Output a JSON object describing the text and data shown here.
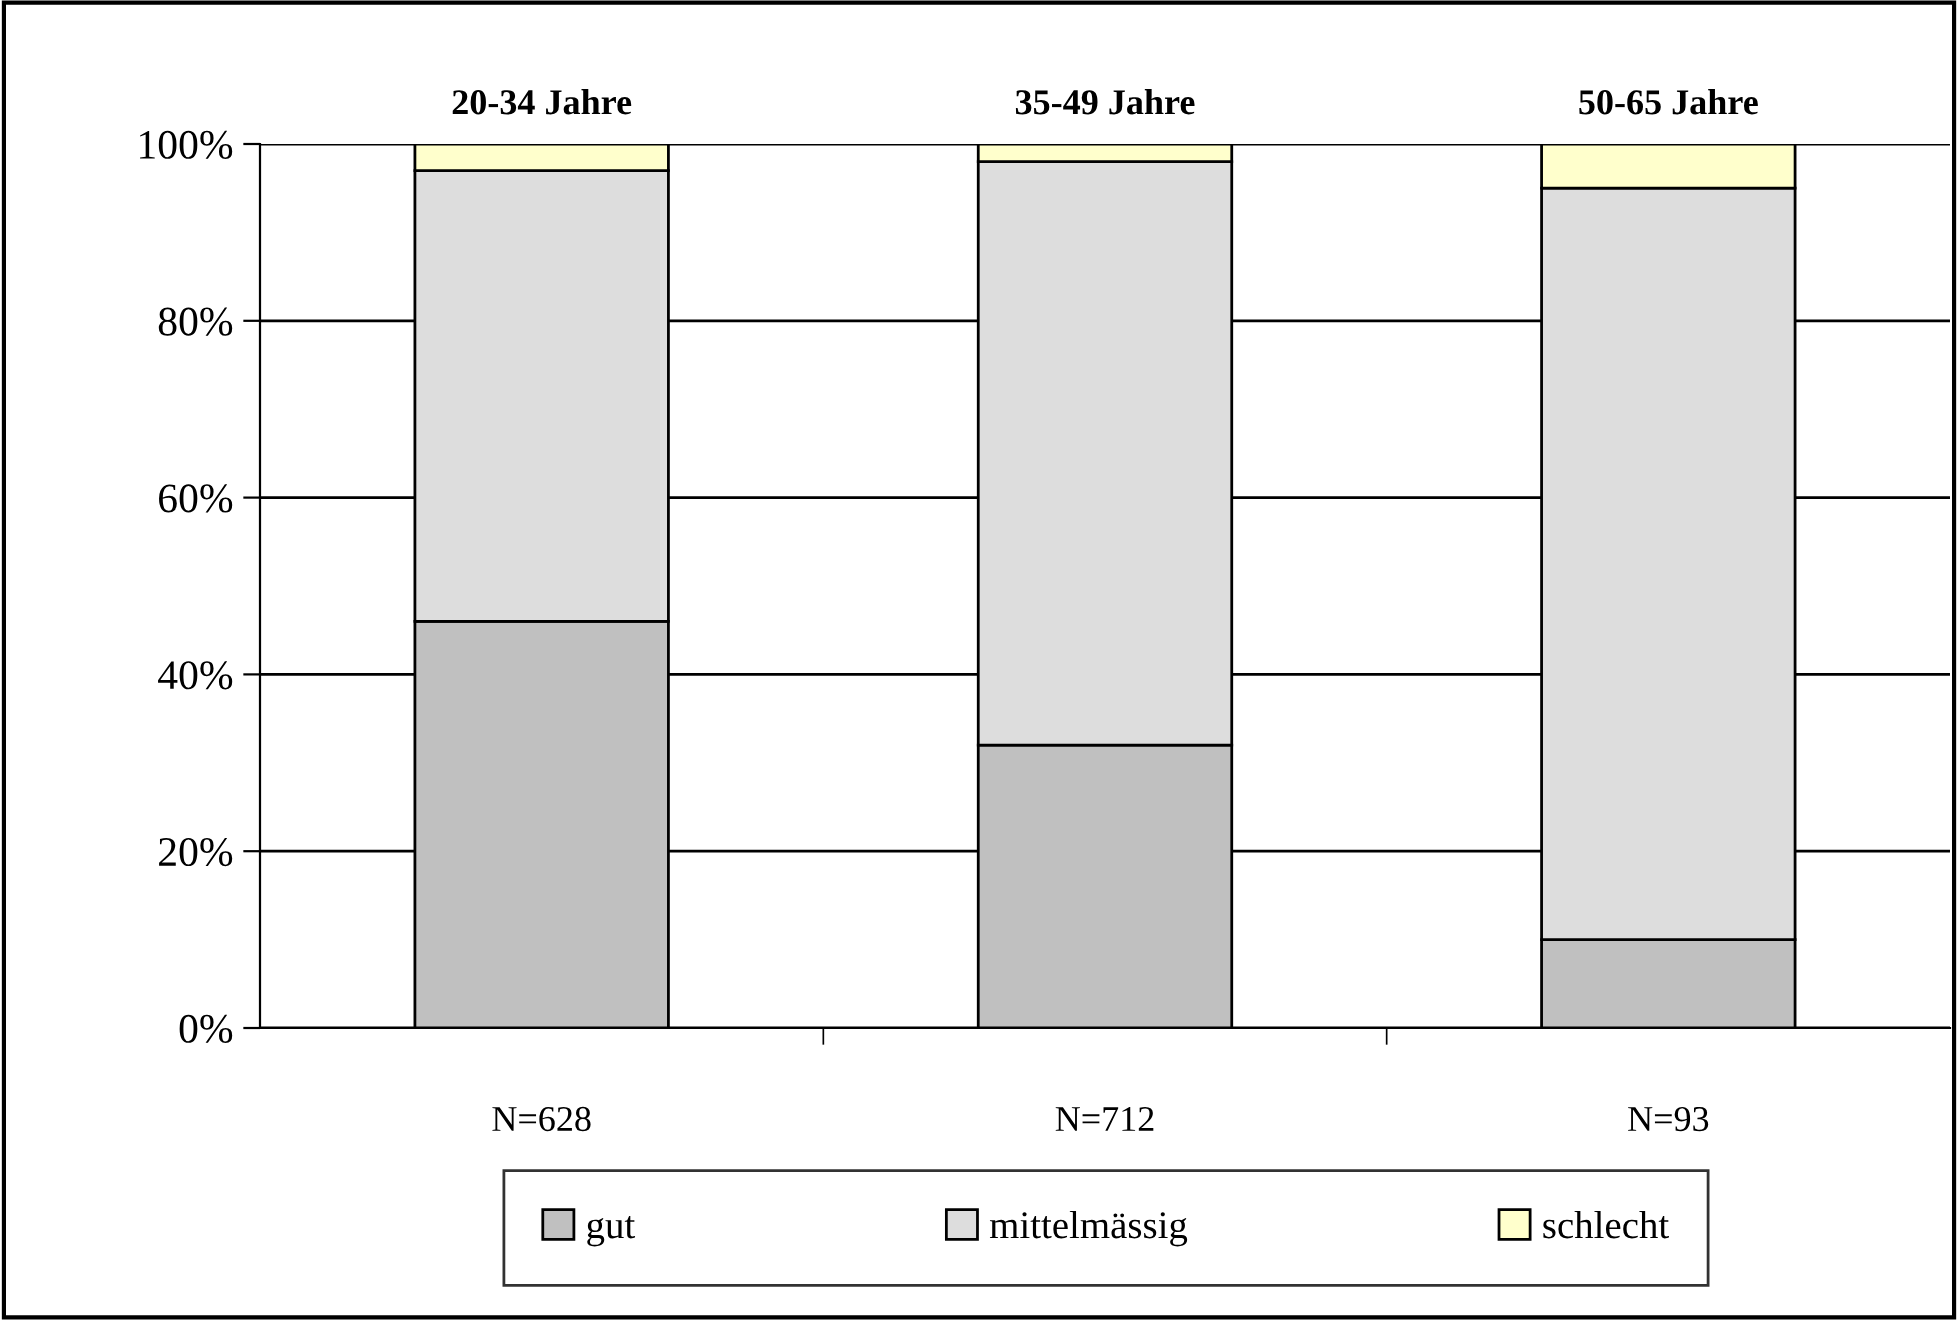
{
  "chart_data": {
    "type": "bar",
    "stacked": true,
    "categories": [
      "N=628",
      "N=712",
      "N=93"
    ],
    "series": [
      {
        "name": "gut",
        "color": "#c0c0c0",
        "values": [
          46,
          32,
          10
        ]
      },
      {
        "name": "mittelmässig",
        "color": "#dddddd",
        "values": [
          51,
          66,
          85
        ]
      },
      {
        "name": "schlecht",
        "color": "#ffffcc",
        "values": [
          3,
          2,
          5
        ]
      }
    ],
    "annotations": [
      {
        "text": "20-34 Jahre",
        "x": "N=628",
        "y": 100
      },
      {
        "text": "35-49 Jahre",
        "x": "N=712",
        "y": 100
      },
      {
        "text": "50-65 Jahre",
        "x": "N=93",
        "y": 100
      }
    ],
    "ylim": [
      0,
      100
    ],
    "yticks": [
      {
        "value": 0,
        "label": "0%"
      },
      {
        "value": 20,
        "label": "20%"
      },
      {
        "value": 40,
        "label": "40%"
      },
      {
        "value": 60,
        "label": "60%"
      },
      {
        "value": 80,
        "label": "80%"
      },
      {
        "value": 100,
        "label": "100%"
      }
    ],
    "grid": "y",
    "legend": "bottom"
  }
}
